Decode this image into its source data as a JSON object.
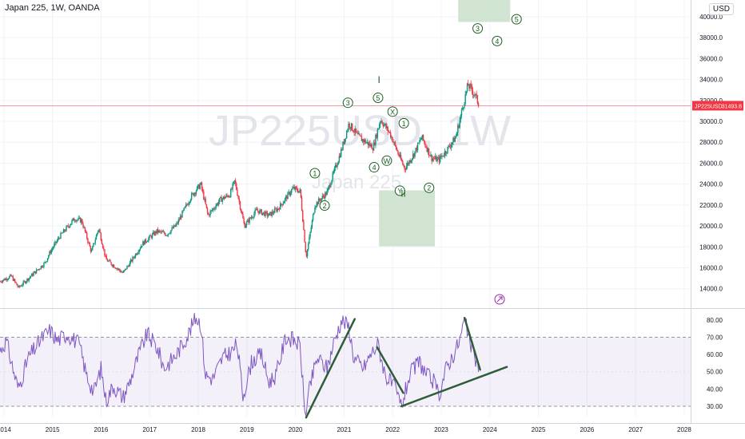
{
  "header": {
    "title": "Japan 225, 1W, OANDA",
    "currency": "USD"
  },
  "watermark": {
    "symbol": "JP225USD, 1W",
    "name": "Japan 225"
  },
  "price_tag": {
    "symbol": "JP225USD",
    "value": "31493.8",
    "color": "#f23645"
  },
  "colors": {
    "up": "#089981",
    "down": "#f23645",
    "rsi": "#7e57c2",
    "zone": "#c8dfc9",
    "wave": "#1b5e20",
    "trendline": "#2e5d3a",
    "grid": "#f0f3fa"
  },
  "chart_data": [
    {
      "type": "candlestick",
      "title": "Japan 225, 1W, OANDA",
      "y_ticks": [
        14000,
        16000,
        18000,
        20000,
        22000,
        24000,
        26000,
        28000,
        30000,
        32000,
        34000,
        36000,
        38000,
        40000
      ],
      "y_tick_labels": [
        "14000.0",
        "16000.0",
        "18000.0",
        "20000.0",
        "22000.0",
        "24000.0",
        "26000.0",
        "28000.0",
        "30000.0",
        "32000.0",
        "34000.0",
        "36000.0",
        "38000.0",
        "40000.0"
      ],
      "ylim": [
        12300,
        41600
      ],
      "xlim": [
        2013.92,
        2028.1
      ],
      "x_ticks": [
        2014,
        2015,
        2016,
        2017,
        2018,
        2019,
        2020,
        2021,
        2022,
        2023,
        2024,
        2025,
        2026,
        2027,
        2028
      ],
      "x_tick_labels": [
        "2014",
        "2015",
        "2016",
        "2017",
        "2018",
        "2019",
        "2020",
        "2021",
        "2022",
        "2023",
        "2024",
        "2025",
        "2026",
        "2027",
        "2028"
      ],
      "last_price": 31493.8,
      "anchors": [
        [
          2013.92,
          14700
        ],
        [
          2014.15,
          15200
        ],
        [
          2014.3,
          14100
        ],
        [
          2014.6,
          15400
        ],
        [
          2014.85,
          16500
        ],
        [
          2014.95,
          17500
        ],
        [
          2015.15,
          19000
        ],
        [
          2015.45,
          20700
        ],
        [
          2015.6,
          20500
        ],
        [
          2015.8,
          17500
        ],
        [
          2015.95,
          19800
        ],
        [
          2016.1,
          16800
        ],
        [
          2016.45,
          15500
        ],
        [
          2016.6,
          16500
        ],
        [
          2016.85,
          18300
        ],
        [
          2017.15,
          19500
        ],
        [
          2017.35,
          19200
        ],
        [
          2017.55,
          20100
        ],
        [
          2017.85,
          22800
        ],
        [
          2018.05,
          24000
        ],
        [
          2018.2,
          21000
        ],
        [
          2018.45,
          22500
        ],
        [
          2018.65,
          23000
        ],
        [
          2018.75,
          24300
        ],
        [
          2018.95,
          20000
        ],
        [
          2019.2,
          21500
        ],
        [
          2019.45,
          21000
        ],
        [
          2019.65,
          21700
        ],
        [
          2019.95,
          23600
        ],
        [
          2020.1,
          23300
        ],
        [
          2020.22,
          17000
        ],
        [
          2020.4,
          22000
        ],
        [
          2020.65,
          23200
        ],
        [
          2020.95,
          27300
        ],
        [
          2021.1,
          29800
        ],
        [
          2021.3,
          28500
        ],
        [
          2021.6,
          27500
        ],
        [
          2021.75,
          30200
        ],
        [
          2021.95,
          28800
        ],
        [
          2022.15,
          26500
        ],
        [
          2022.25,
          25500
        ],
        [
          2022.45,
          27000
        ],
        [
          2022.6,
          28500
        ],
        [
          2022.8,
          26500
        ],
        [
          2022.95,
          26300
        ],
        [
          2023.15,
          27500
        ],
        [
          2023.3,
          28500
        ],
        [
          2023.45,
          31500
        ],
        [
          2023.55,
          33500
        ],
        [
          2023.7,
          32500
        ],
        [
          2023.78,
          31493.8
        ]
      ],
      "annotations": [
        {
          "label": "3",
          "x": 2021.08,
          "y": 31780
        },
        {
          "label": "5",
          "x": 2021.7,
          "y": 32250
        },
        {
          "label": "X",
          "x": 2022.0,
          "y": 30930
        },
        {
          "label": "1",
          "x": 2022.23,
          "y": 29820
        },
        {
          "label": "1",
          "x": 2020.4,
          "y": 25040
        },
        {
          "label": "4",
          "x": 2021.62,
          "y": 25610
        },
        {
          "label": "W",
          "x": 2021.88,
          "y": 26240
        },
        {
          "label": "Y",
          "x": 2022.15,
          "y": 23370
        },
        {
          "label": "2",
          "x": 2022.75,
          "y": 23650
        },
        {
          "label": "2",
          "x": 2020.6,
          "y": 21950
        },
        {
          "label": "3",
          "x": 2023.75,
          "y": 38880
        },
        {
          "label": "4",
          "x": 2024.15,
          "y": 37680
        },
        {
          "label": "5",
          "x": 2024.55,
          "y": 39760
        }
      ],
      "wave_markers": [
        {
          "label": "I",
          "x": 2021.72,
          "y": 33650
        },
        {
          "label": "II",
          "x": 2022.22,
          "y": 22800
        }
      ],
      "target_zones": [
        {
          "x0": 2023.35,
          "x1": 2024.42,
          "y0": 39500,
          "y1": 41600
        },
        {
          "x0": 2021.72,
          "x1": 2022.87,
          "y0": 18050,
          "y1": 23400
        }
      ]
    },
    {
      "type": "line",
      "series": [
        {
          "values_from": "rsi"
        }
      ],
      "y_ticks": [
        30,
        40,
        50,
        60,
        70,
        80
      ],
      "y_tick_labels": [
        "30.00",
        "40.00",
        "50.00",
        "60.00",
        "70.00",
        "80.00"
      ],
      "ylim": [
        24,
        85
      ],
      "bands": [
        30,
        70
      ],
      "anchors": [
        [
          2013.92,
          62
        ],
        [
          2014.05,
          68
        ],
        [
          2014.2,
          50
        ],
        [
          2014.3,
          40
        ],
        [
          2014.5,
          58
        ],
        [
          2014.8,
          70
        ],
        [
          2014.95,
          74
        ],
        [
          2015.1,
          68
        ],
        [
          2015.3,
          72
        ],
        [
          2015.55,
          66
        ],
        [
          2015.7,
          48
        ],
        [
          2015.85,
          38
        ],
        [
          2016.0,
          52
        ],
        [
          2016.1,
          33
        ],
        [
          2016.25,
          42
        ],
        [
          2016.45,
          35
        ],
        [
          2016.6,
          45
        ],
        [
          2016.8,
          62
        ],
        [
          2016.95,
          72
        ],
        [
          2017.15,
          64
        ],
        [
          2017.3,
          52
        ],
        [
          2017.55,
          60
        ],
        [
          2017.8,
          72
        ],
        [
          2017.95,
          82
        ],
        [
          2018.05,
          78
        ],
        [
          2018.15,
          48
        ],
        [
          2018.3,
          46
        ],
        [
          2018.5,
          58
        ],
        [
          2018.7,
          62
        ],
        [
          2018.8,
          66
        ],
        [
          2018.92,
          36
        ],
        [
          2019.1,
          56
        ],
        [
          2019.3,
          60
        ],
        [
          2019.45,
          44
        ],
        [
          2019.6,
          48
        ],
        [
          2019.8,
          70
        ],
        [
          2020.0,
          68
        ],
        [
          2020.1,
          64
        ],
        [
          2020.2,
          23
        ],
        [
          2020.3,
          42
        ],
        [
          2020.45,
          58
        ],
        [
          2020.65,
          52
        ],
        [
          2020.8,
          68
        ],
        [
          2020.95,
          80
        ],
        [
          2021.1,
          76
        ],
        [
          2021.2,
          58
        ],
        [
          2021.4,
          52
        ],
        [
          2021.55,
          60
        ],
        [
          2021.7,
          66
        ],
        [
          2021.85,
          48
        ],
        [
          2022.05,
          40
        ],
        [
          2022.18,
          30
        ],
        [
          2022.35,
          48
        ],
        [
          2022.55,
          56
        ],
        [
          2022.7,
          48
        ],
        [
          2022.85,
          44
        ],
        [
          2022.95,
          36
        ],
        [
          2023.1,
          52
        ],
        [
          2023.25,
          60
        ],
        [
          2023.38,
          68
        ],
        [
          2023.48,
          80
        ],
        [
          2023.6,
          66
        ],
        [
          2023.7,
          58
        ],
        [
          2023.78,
          52
        ]
      ],
      "trendlines": [
        {
          "x0": 2020.22,
          "y0": 23.5,
          "x1": 2021.22,
          "y1": 80.5
        },
        {
          "x0": 2021.68,
          "y0": 64.2,
          "x1": 2022.22,
          "y1": 37.7
        },
        {
          "x0": 2022.18,
          "y0": 30.0,
          "x1": 2024.35,
          "y1": 52.8
        },
        {
          "x0": 2023.48,
          "y0": 81.2,
          "x1": 2023.8,
          "y1": 51.2
        }
      ]
    }
  ]
}
